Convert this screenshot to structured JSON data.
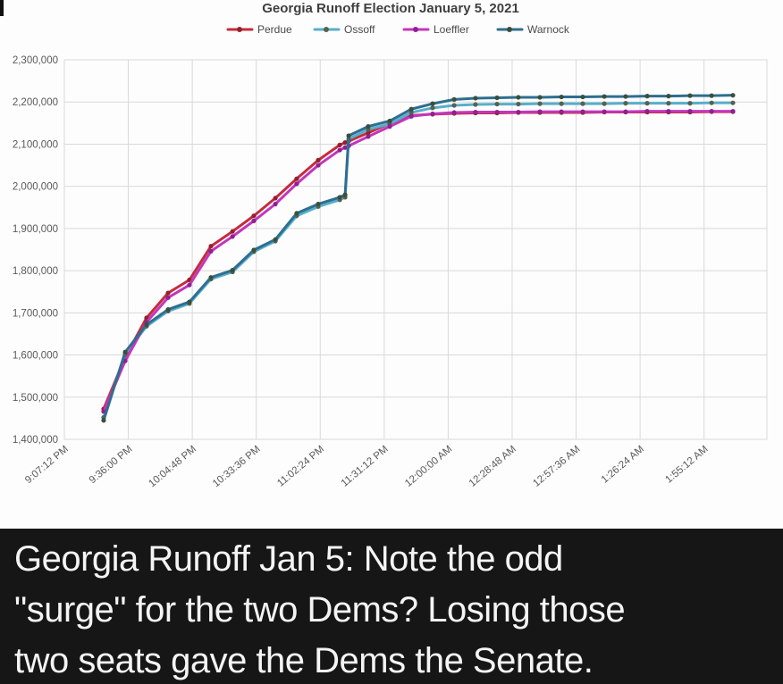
{
  "chart_data": {
    "type": "line",
    "title": "Georgia Runoff Election January 5, 2021",
    "xlabel": "",
    "ylabel": "",
    "ylim": [
      1400000,
      2300000
    ],
    "y_tick_step": 100000,
    "y_tick_labels": [
      "1,400,000",
      "1,500,000",
      "1,600,000",
      "1,700,000",
      "1,800,000",
      "1,900,000",
      "2,000,000",
      "2,100,000",
      "2,200,000",
      "2,300,000"
    ],
    "x_tick_labels": [
      "9:07:12 PM",
      "9:36:00 PM",
      "10:04:48 PM",
      "10:33:36 PM",
      "11:02:24 PM",
      "11:31:12 PM",
      "12:00:00 AM",
      "12:28:48 AM",
      "12:57:36 AM",
      "1:26:24 AM",
      "1:55:12 AM"
    ],
    "x_tick_interval_minutes": 28.8,
    "x_axis_max_minutes": 316.3,
    "grid": true,
    "legend_position": "top",
    "x_minutes": [
      17.7,
      27.4,
      37,
      46.7,
      56.3,
      66,
      75.7,
      85.3,
      95,
      104.6,
      114.3,
      124,
      126.4,
      128,
      136.8,
      146.5,
      156.2,
      165.8,
      175.5,
      185.1,
      194.8,
      204.4,
      214.1,
      223.8,
      233.4,
      243.1,
      252.7,
      262.4,
      272,
      281.7,
      291.4,
      301
    ],
    "series": [
      {
        "name": "Perdue",
        "color": "#c52b3e",
        "marker_color": "#93212e",
        "values": [
          1472000,
          1595000,
          1688000,
          1747000,
          1778000,
          1858000,
          1893000,
          1930000,
          1972000,
          2018000,
          2062000,
          2098000,
          2104000,
          2107000,
          2127000,
          2149000,
          2168000,
          2171000,
          2173000,
          2174000,
          2174000,
          2175000,
          2175000,
          2175000,
          2175000,
          2176000,
          2176000,
          2176000,
          2176000,
          2176000,
          2177000,
          2177000
        ]
      },
      {
        "name": "Ossoff",
        "color": "#58aeca",
        "marker_color": "#55624e",
        "values": [
          1452000,
          1603000,
          1668000,
          1704000,
          1722000,
          1780000,
          1797000,
          1845000,
          1870000,
          1930000,
          1952000,
          1968000,
          1974000,
          2112000,
          2135000,
          2148000,
          2175000,
          2186000,
          2192000,
          2194000,
          2195000,
          2195000,
          2196000,
          2196000,
          2196000,
          2196000,
          2197000,
          2197000,
          2197000,
          2197000,
          2198000,
          2198000
        ]
      },
      {
        "name": "Loeffler",
        "color": "#c336bb",
        "marker_color": "#8d2195",
        "values": [
          1466000,
          1586000,
          1678000,
          1736000,
          1766000,
          1846000,
          1881000,
          1918000,
          1958000,
          2006000,
          2050000,
          2086000,
          2092000,
          2096000,
          2118000,
          2142000,
          2166000,
          2172000,
          2175000,
          2176000,
          2176000,
          2176000,
          2177000,
          2177000,
          2177000,
          2177000,
          2177000,
          2178000,
          2178000,
          2178000,
          2178000,
          2178000
        ]
      },
      {
        "name": "Warnock",
        "color": "#2e6e91",
        "marker_color": "#3a4f3c",
        "values": [
          1445000,
          1607000,
          1672000,
          1708000,
          1726000,
          1784000,
          1801000,
          1849000,
          1874000,
          1936000,
          1958000,
          1974000,
          1980000,
          2120000,
          2142000,
          2155000,
          2183000,
          2196000,
          2206000,
          2209000,
          2210000,
          2211000,
          2211000,
          2212000,
          2212000,
          2213000,
          2213000,
          2214000,
          2214000,
          2215000,
          2215000,
          2216000
        ]
      }
    ],
    "colors": {
      "gridline": "#d9d9d9",
      "axis_text": "#595959",
      "title_text": "#3f3f3f",
      "plot_background": "#fdfdfd"
    }
  },
  "caption": {
    "background": "#161616",
    "text_color": "#f4f4f4",
    "lines": [
      "Georgia Runoff Jan 5: Note the odd",
      "\"surge\" for the two Dems? Losing those",
      "two seats gave the Dems the Senate."
    ]
  }
}
